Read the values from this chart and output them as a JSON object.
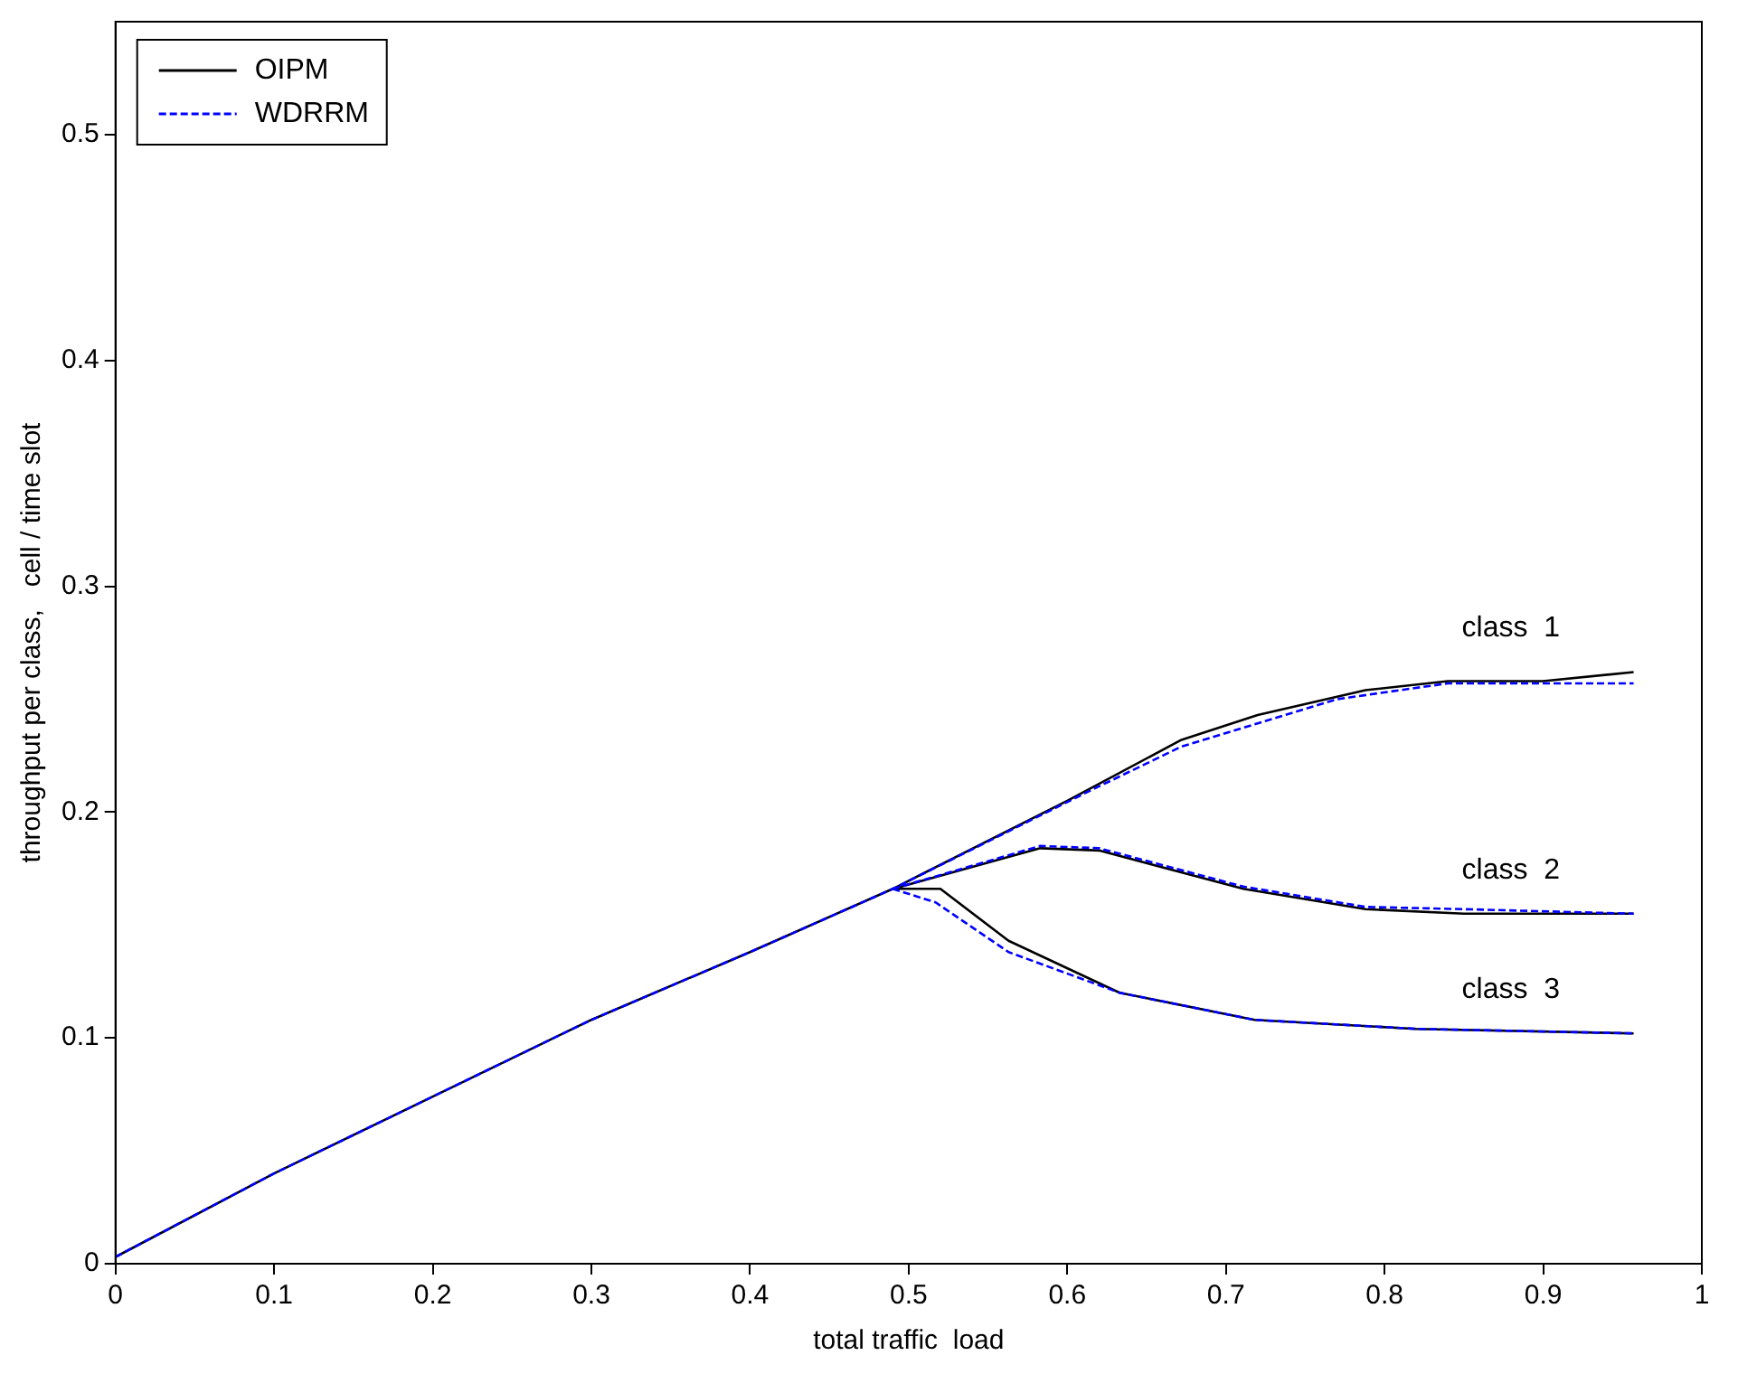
{
  "chart_data": {
    "type": "line",
    "xlabel": "total traffic  load",
    "ylabel": "throughput per class,   cell / time slot",
    "xlim": [
      0,
      1
    ],
    "xticks": [
      0,
      0.1,
      0.2,
      0.3,
      0.4,
      0.5,
      0.6,
      0.7,
      0.8,
      0.9,
      1
    ],
    "ylim": [
      0,
      0.55
    ],
    "yticks": [
      0,
      0.1,
      0.2,
      0.3,
      0.4,
      0.5
    ],
    "grid": false,
    "legend": "top left",
    "marker": "none",
    "series": [
      {
        "name": "OIPM",
        "color": "#000000",
        "line_style": "solid",
        "x": [
          0,
          0.1,
          0.2,
          0.3,
          0.4,
          0.49,
          0.6,
          0.672,
          0.72,
          0.788,
          0.84,
          0.9,
          0.957
        ],
        "values": [
          0.003,
          0.04,
          0.074,
          0.108,
          0.138,
          0.166,
          0.205,
          0.232,
          0.243,
          0.254,
          0.258,
          0.258,
          0.262
        ]
      },
      {
        "name": "WDRRM",
        "color": "#0000ff",
        "line_style": "dashed",
        "x": [
          0,
          0.1,
          0.2,
          0.3,
          0.4,
          0.49,
          0.613,
          0.672,
          0.77,
          0.84,
          0.9,
          0.957
        ],
        "values": [
          0.003,
          0.04,
          0.074,
          0.108,
          0.138,
          0.166,
          0.209,
          0.229,
          0.25,
          0.257,
          0.257,
          0.257
        ]
      },
      {
        "color": "#000000",
        "line_style": "solid",
        "x": [
          0.49,
          0.583,
          0.62,
          0.711,
          0.788,
          0.85,
          0.957
        ],
        "values": [
          0.166,
          0.184,
          0.183,
          0.166,
          0.157,
          0.155,
          0.155
        ]
      },
      {
        "color": "#0000ff",
        "line_style": "dashed",
        "x": [
          0.49,
          0.583,
          0.62,
          0.711,
          0.788,
          0.85,
          0.957
        ],
        "values": [
          0.166,
          0.185,
          0.184,
          0.167,
          0.158,
          0.157,
          0.155
        ]
      },
      {
        "color": "#000000",
        "line_style": "solid",
        "x": [
          0.49,
          0.52,
          0.563,
          0.633,
          0.718,
          0.82,
          0.957
        ],
        "values": [
          0.166,
          0.166,
          0.143,
          0.12,
          0.108,
          0.104,
          0.102
        ]
      },
      {
        "color": "#0000ff",
        "line_style": "dashed",
        "x": [
          0.49,
          0.517,
          0.563,
          0.633,
          0.718,
          0.82,
          0.957
        ],
        "values": [
          0.166,
          0.16,
          0.138,
          0.12,
          0.108,
          0.104,
          0.102
        ]
      }
    ],
    "annotations": [
      "class  1",
      "class  2",
      "class  3"
    ]
  }
}
